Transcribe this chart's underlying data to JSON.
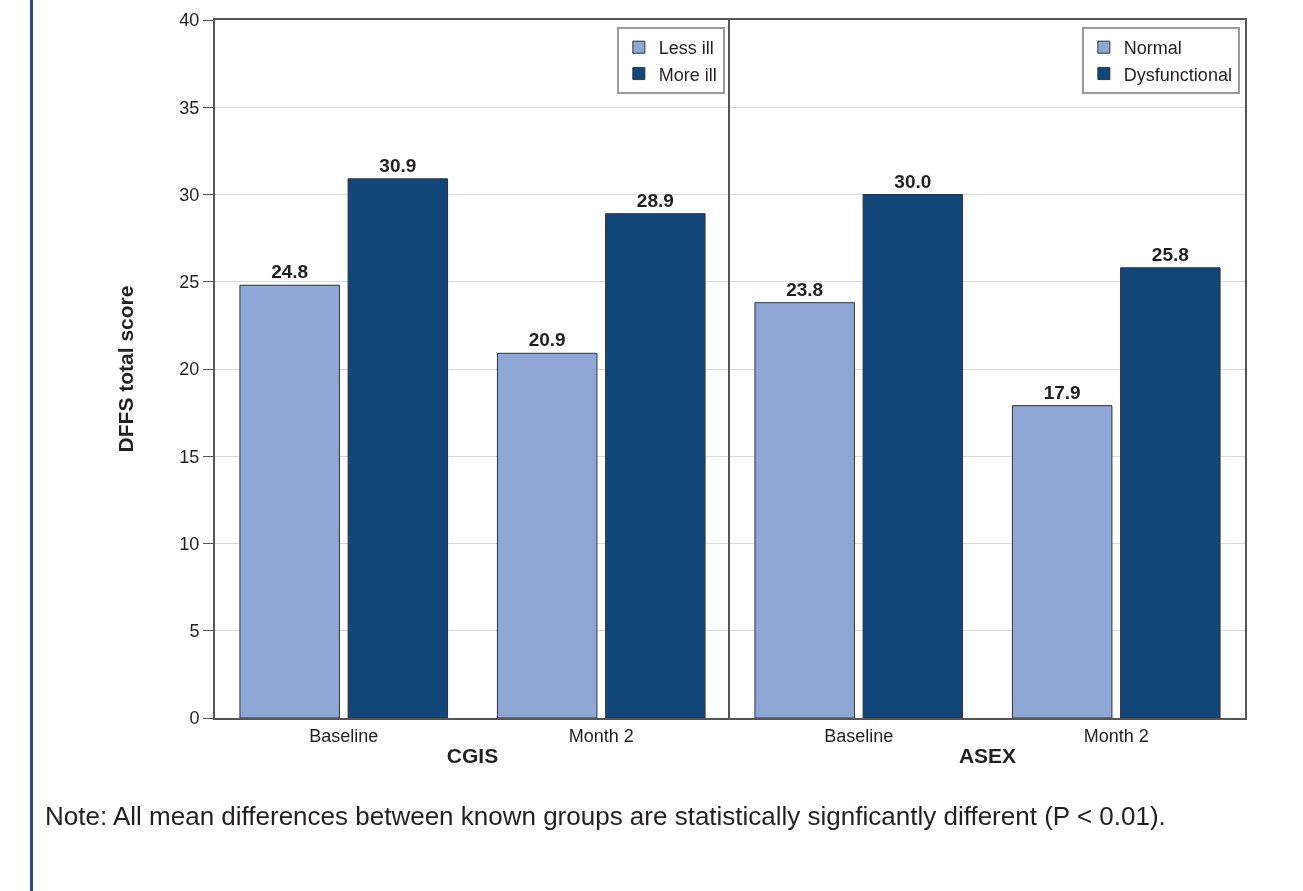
{
  "chart_data": [
    {
      "type": "bar",
      "xlabel": "CGIS",
      "ylabel": "DFFS total score",
      "categories": [
        "Baseline",
        "Month 2"
      ],
      "series": [
        {
          "name": "Less ill",
          "color": "#8fa7d6",
          "values": [
            24.8,
            20.9
          ],
          "value_labels": [
            "24.8",
            "20.9"
          ]
        },
        {
          "name": "More ill",
          "color": "#11467a",
          "values": [
            30.9,
            28.9
          ],
          "value_labels": [
            "30.9",
            "28.9"
          ]
        }
      ],
      "ylim": [
        0,
        40
      ],
      "yticks": [
        0,
        5,
        10,
        15,
        20,
        25,
        30,
        35,
        40
      ],
      "grid": "y",
      "legend": "top right",
      "annotations": [
        "Note: All mean differences between known groups are statistically signficantly different (P < 0.01)."
      ]
    },
    {
      "type": "bar",
      "xlabel": "ASEX",
      "categories": [
        "Baseline",
        "Month 2"
      ],
      "series": [
        {
          "name": "Normal",
          "color": "#8fa7d6",
          "values": [
            23.8,
            17.9
          ],
          "value_labels": [
            "23.8",
            "17.9"
          ]
        },
        {
          "name": "Dysfunctional",
          "color": "#11467a",
          "values": [
            30.0,
            25.8
          ],
          "value_labels": [
            "30.0",
            "25.8"
          ]
        }
      ],
      "ylim": [
        0,
        40
      ],
      "yticks": [
        0,
        5,
        10,
        15,
        20,
        25,
        30,
        35,
        40
      ],
      "grid": "y",
      "legend": "top right",
      "tick_labels": "x"
    }
  ]
}
